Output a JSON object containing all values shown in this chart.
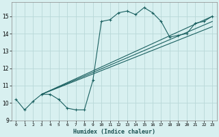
{
  "xlabel": "Humidex (Indice chaleur)",
  "bg_color": "#d8f0f0",
  "grid_color": "#b8d8d8",
  "line_color": "#1a6060",
  "xlim": [
    -0.5,
    23.5
  ],
  "ylim": [
    9.0,
    15.8
  ],
  "xticks": [
    0,
    1,
    2,
    3,
    4,
    5,
    6,
    7,
    8,
    9,
    10,
    11,
    12,
    13,
    14,
    15,
    16,
    17,
    18,
    19,
    20,
    21,
    22,
    23
  ],
  "yticks": [
    9,
    10,
    11,
    12,
    13,
    14,
    15
  ],
  "line1_x": [
    0,
    1,
    2,
    3,
    4,
    5,
    6,
    7,
    8,
    9,
    10,
    11,
    12,
    13,
    14,
    15,
    16,
    17,
    18,
    19,
    20,
    21,
    22,
    23
  ],
  "line1_y": [
    10.2,
    9.6,
    10.1,
    10.5,
    10.5,
    10.2,
    9.7,
    9.6,
    9.6,
    11.3,
    14.7,
    14.8,
    15.2,
    15.3,
    15.1,
    15.5,
    15.2,
    14.7,
    13.8,
    13.9,
    14.0,
    14.6,
    14.7,
    15.0
  ],
  "line2_x": [
    3,
    23
  ],
  "line2_y": [
    10.5,
    15.0
  ],
  "line3_x": [
    3,
    23
  ],
  "line3_y": [
    10.5,
    14.7
  ],
  "line4_x": [
    3,
    23
  ],
  "line4_y": [
    10.5,
    14.4
  ]
}
